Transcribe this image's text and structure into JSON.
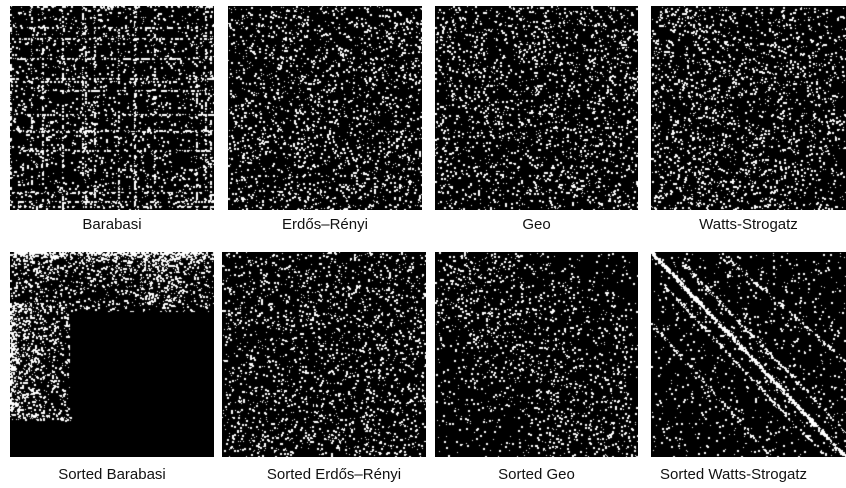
{
  "panels": [
    {
      "id": "barabasi",
      "caption": "Barabasi",
      "pattern": "barabasi"
    },
    {
      "id": "erdos-renyi",
      "caption": "Erdős–Rényi",
      "pattern": "uniform"
    },
    {
      "id": "geo",
      "caption": "Geo",
      "pattern": "uniform"
    },
    {
      "id": "watts-strogatz",
      "caption": "Watts-Strogatz",
      "pattern": "uniform"
    },
    {
      "id": "sorted-barabasi",
      "caption": "Sorted Barabasi",
      "pattern": "sorted-barabasi"
    },
    {
      "id": "sorted-erdos-renyi",
      "caption": "Sorted Erdős–Rényi",
      "pattern": "uniform"
    },
    {
      "id": "sorted-geo",
      "caption": "Sorted Geo",
      "pattern": "sorted-geo"
    },
    {
      "id": "sorted-watts-strogatz",
      "caption": "Sorted Watts-Strogatz",
      "pattern": "sorted-watts"
    }
  ]
}
